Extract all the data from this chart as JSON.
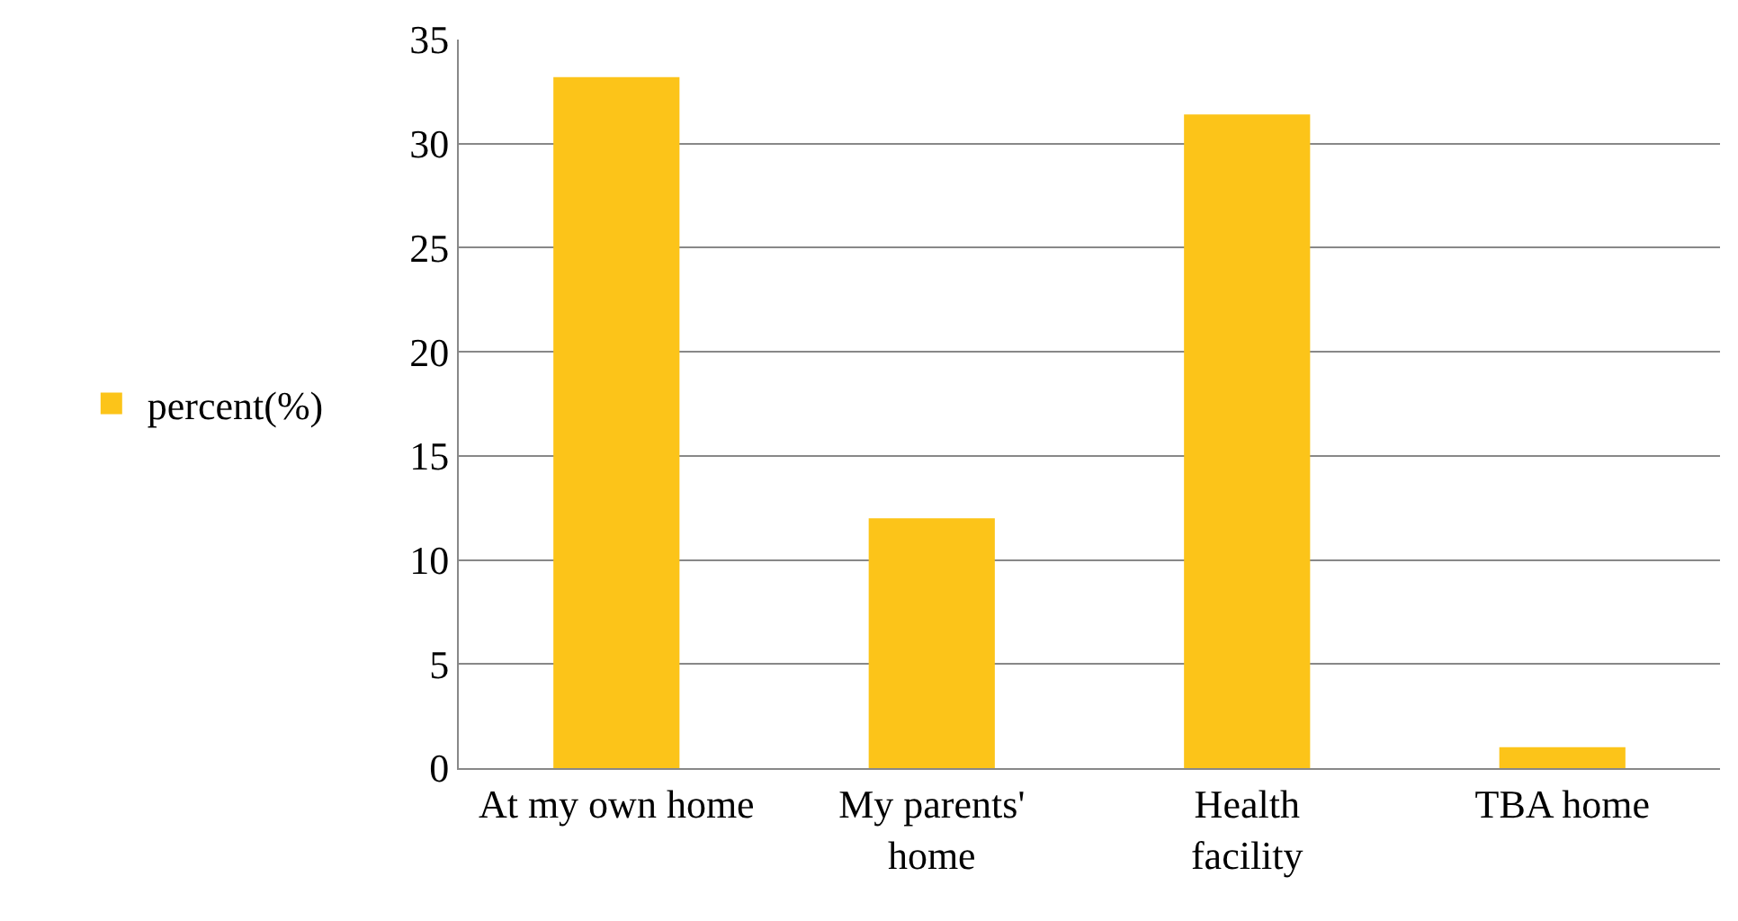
{
  "chart_data": {
    "type": "bar",
    "categories": [
      "At my own home",
      "My parents' home",
      "Health facility",
      "TBA home"
    ],
    "series": [
      {
        "name": "percent(%)",
        "color": "#fcc419",
        "values": [
          33.2,
          12.0,
          31.4,
          1.0
        ]
      }
    ],
    "ylim": [
      0,
      35
    ],
    "yticks": [
      0,
      5,
      10,
      15,
      20,
      25,
      30,
      35
    ],
    "grid": "y",
    "legend": "left"
  }
}
